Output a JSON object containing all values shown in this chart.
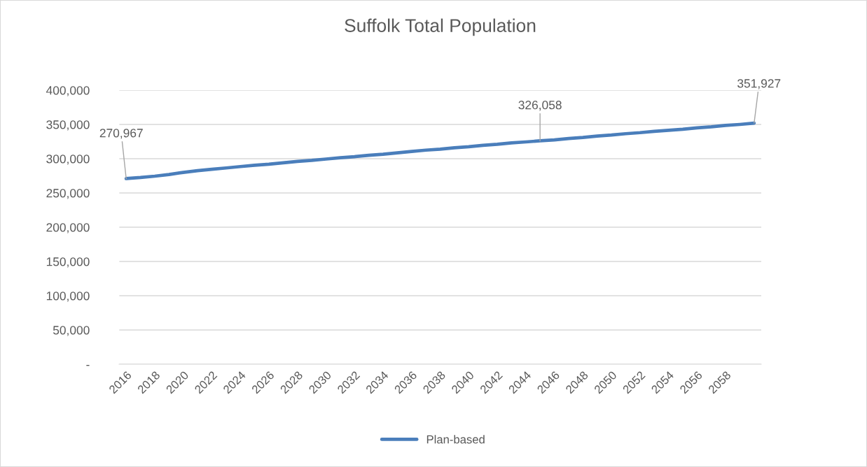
{
  "chart_data": {
    "type": "line",
    "title": "Suffolk Total Population",
    "categories": [
      "2016",
      null,
      "2018",
      null,
      "2020",
      null,
      "2022",
      null,
      "2024",
      null,
      "2026",
      null,
      "2028",
      null,
      "2030",
      null,
      "2032",
      null,
      "2034",
      null,
      "2036",
      null,
      "2038",
      null,
      "2040",
      null,
      "2042",
      null,
      "2044",
      null,
      "2046",
      null,
      "2048",
      null,
      "2050",
      null,
      "2052",
      null,
      "2054",
      null,
      "2056",
      null,
      "2058",
      null,
      null
    ],
    "series": [
      {
        "name": "Plan-based",
        "color": "#4a7ebb",
        "values": [
          270967,
          272500,
          274500,
          277000,
          280000,
          282500,
          284500,
          286500,
          288500,
          290500,
          292000,
          294000,
          296000,
          297500,
          299500,
          301500,
          303000,
          305000,
          306500,
          308500,
          310500,
          312500,
          314000,
          316000,
          317500,
          319500,
          321000,
          323000,
          324500,
          326058,
          327500,
          329500,
          331000,
          333000,
          334500,
          336500,
          338000,
          340000,
          341500,
          343000,
          345000,
          346500,
          348500,
          350000,
          351927
        ],
        "value_labels": [
          "270,967",
          null,
          null,
          null,
          null,
          null,
          null,
          null,
          null,
          null,
          null,
          null,
          null,
          null,
          null,
          null,
          null,
          null,
          null,
          null,
          null,
          null,
          null,
          null,
          null,
          null,
          null,
          null,
          null,
          "326,058",
          null,
          null,
          null,
          null,
          null,
          null,
          null,
          null,
          null,
          null,
          null,
          null,
          null,
          null,
          "351,927"
        ]
      }
    ],
    "ylim": [
      0,
      400000
    ],
    "yticks": [
      {
        "value": 0,
        "label": "-"
      },
      {
        "value": 50000,
        "label": "50,000"
      },
      {
        "value": 100000,
        "label": "100,000"
      },
      {
        "value": 150000,
        "label": "150,000"
      },
      {
        "value": 200000,
        "label": "200,000"
      },
      {
        "value": 250000,
        "label": "250,000"
      },
      {
        "value": 300000,
        "label": "300,000"
      },
      {
        "value": 350000,
        "label": "350,000"
      },
      {
        "value": 400000,
        "label": "400,000"
      }
    ],
    "grid": "y",
    "legend": "bottom",
    "marker": "none",
    "line_style": "solid"
  }
}
